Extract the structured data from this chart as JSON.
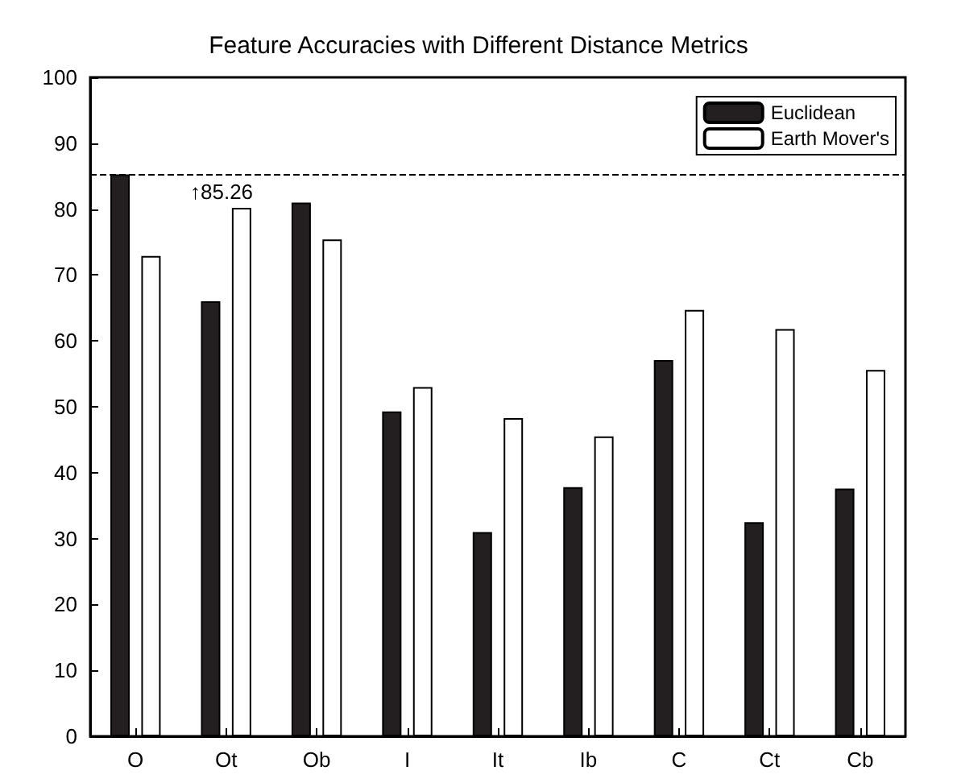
{
  "chart_data": {
    "type": "bar",
    "title": "Feature Accuracies with Different Distance Metrics",
    "categories": [
      "O",
      "Ot",
      "Ob",
      "I",
      "It",
      "Ib",
      "C",
      "Ct",
      "Cb"
    ],
    "series": [
      {
        "name": "Euclidean",
        "color": "#231f20",
        "values": [
          85.26,
          66,
          81,
          49.3,
          31,
          37.8,
          57.1,
          32.5,
          37.6
        ]
      },
      {
        "name": "Earth Mover's",
        "color": "#ffffff",
        "values": [
          72.9,
          80.2,
          75.4,
          53,
          48.3,
          45.5,
          64.7,
          61.8,
          55.6
        ]
      }
    ],
    "ylim": [
      0,
      100
    ],
    "yticks": [
      0,
      10,
      20,
      30,
      40,
      50,
      60,
      70,
      80,
      90,
      100
    ],
    "ref_lines": [
      {
        "axis": "y",
        "value": 85.26,
        "label": "↑85.26",
        "color": "#000000",
        "line_style": "dashed"
      }
    ],
    "legend": "top right",
    "grid": false
  }
}
